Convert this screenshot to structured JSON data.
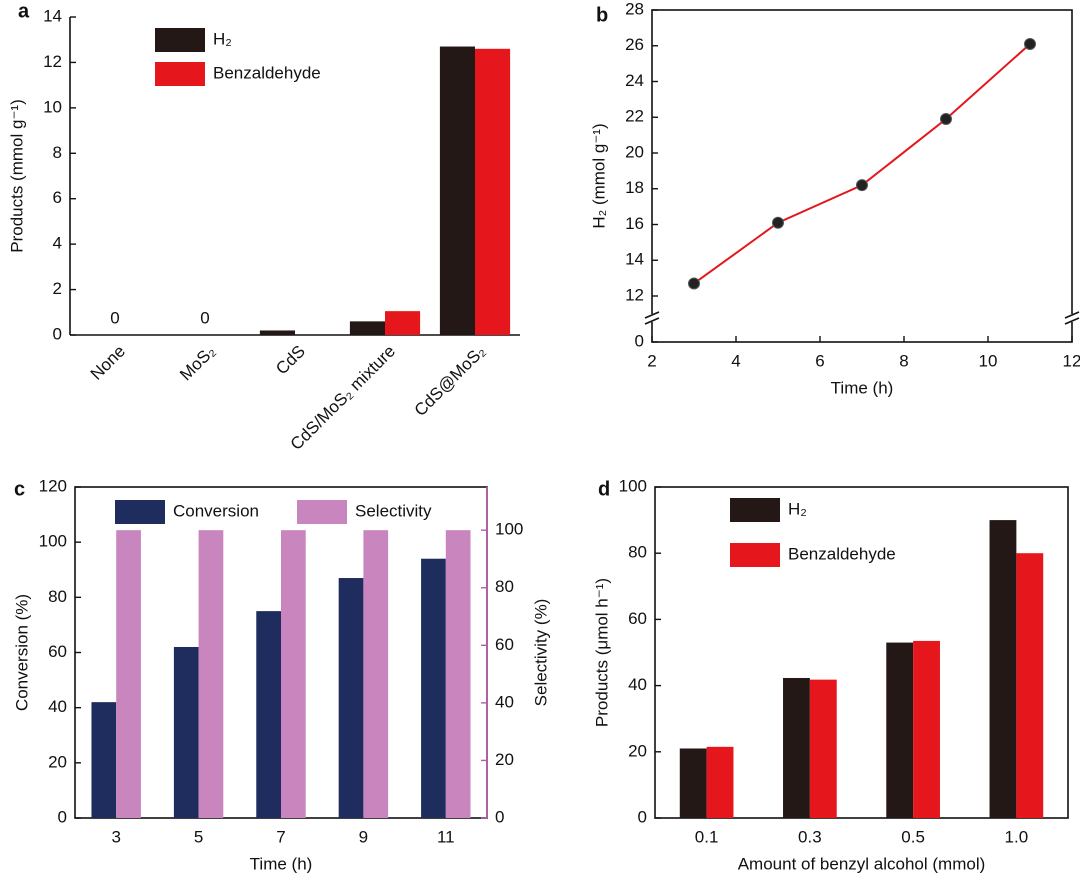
{
  "chart_data": [
    {
      "type": "bar",
      "label": "a",
      "ylabel": "Products (mmol g⁻¹)",
      "categories": [
        "None",
        "MoS₂",
        "CdS",
        "CdS/MoS₂ mixture",
        "CdS@MoS₂"
      ],
      "series": [
        {
          "name": "H₂",
          "color": "#231815",
          "values": [
            0,
            0,
            0.2,
            0.6,
            12.7
          ],
          "value_labels": [
            "0",
            "0",
            null,
            null,
            null
          ]
        },
        {
          "name": "Benzaldehyde",
          "color": "#e5161c",
          "values": [
            0,
            0,
            0,
            1.05,
            12.6
          ]
        }
      ],
      "ylim": [
        0,
        14
      ],
      "yticks": [
        0,
        2,
        4,
        6,
        8,
        10,
        12,
        14
      ],
      "legend": "upper left",
      "rotate_categories": true
    },
    {
      "type": "line",
      "label": "b",
      "xlabel": "Time (h)",
      "ylabel": "H₂ (mmol g⁻¹)",
      "x": [
        3,
        5,
        7,
        9,
        11
      ],
      "series": [
        {
          "name": "H₂",
          "color": "#e5161c",
          "marker_color": "#222222",
          "values": [
            12.7,
            16.1,
            18.2,
            21.9,
            26.1
          ]
        }
      ],
      "xlim": [
        2,
        12
      ],
      "xticks": [
        2,
        4,
        6,
        8,
        10,
        12
      ],
      "ylim": [
        0,
        28
      ],
      "yticks": [
        0,
        12,
        14,
        16,
        18,
        20,
        22,
        24,
        26,
        28
      ],
      "y_break": [
        0,
        12
      ]
    },
    {
      "type": "bar",
      "label": "c",
      "xlabel": "Time (h)",
      "ylabel": "Conversion (%)",
      "y2label": "Selectivity (%)",
      "categories": [
        "3",
        "5",
        "7",
        "9",
        "11"
      ],
      "series": [
        {
          "name": "Conversion",
          "color": "#1e2c5e",
          "values": [
            42,
            62,
            75,
            87,
            94
          ]
        },
        {
          "name": "Selectivity",
          "color": "#c985be",
          "axis": "y2",
          "values": [
            100,
            100,
            100,
            100,
            100
          ]
        }
      ],
      "ylim": [
        0,
        120
      ],
      "yticks": [
        0,
        20,
        40,
        60,
        80,
        100,
        120
      ],
      "y2lim": [
        0,
        115
      ],
      "y2ticks": [
        0,
        20,
        40,
        60,
        80,
        100
      ],
      "y2color": "#b0609f",
      "legend": "upper row"
    },
    {
      "type": "bar",
      "label": "d",
      "xlabel": "Amount of benzyl alcohol (mmol)",
      "ylabel": "Products (μmol h⁻¹)",
      "categories": [
        "0.1",
        "0.3",
        "0.5",
        "1.0"
      ],
      "series": [
        {
          "name": "H₂",
          "color": "#231815",
          "values": [
            21,
            42.3,
            53,
            90
          ]
        },
        {
          "name": "Benzaldehyde",
          "color": "#e5161c",
          "values": [
            21.5,
            41.8,
            53.5,
            80
          ]
        }
      ],
      "ylim": [
        0,
        100
      ],
      "yticks": [
        0,
        20,
        40,
        60,
        80,
        100
      ],
      "legend": "upper left"
    }
  ]
}
